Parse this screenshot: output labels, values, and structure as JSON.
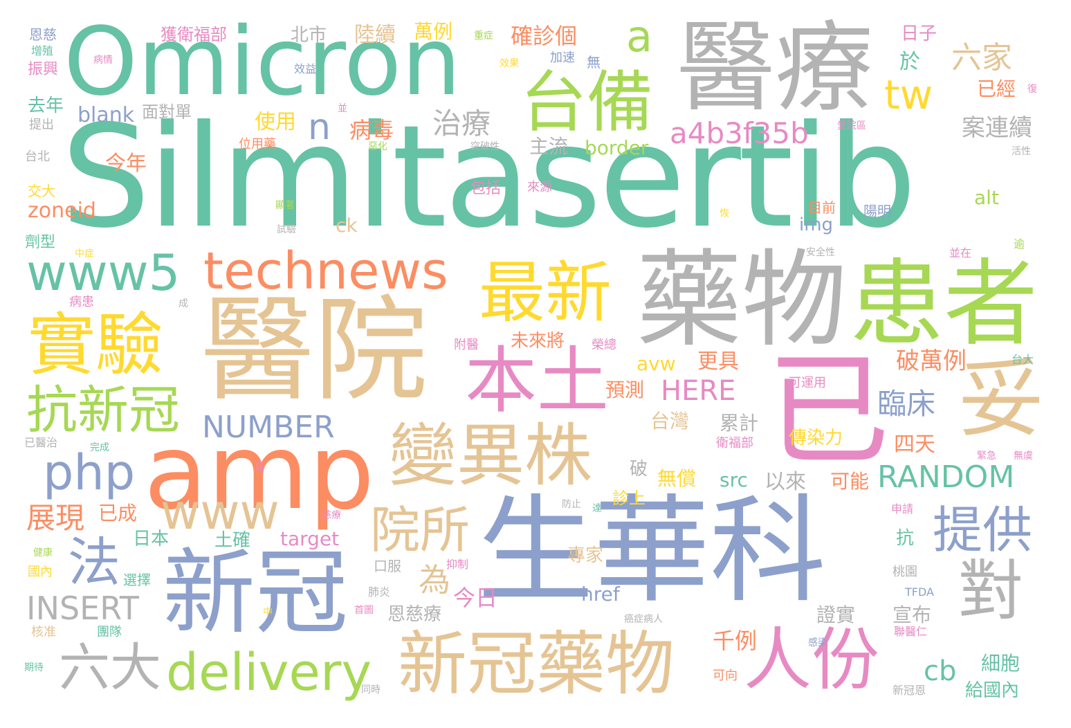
{
  "palette": {
    "green": "#66c2a5",
    "orange": "#fc8d62",
    "blue": "#8da0cb",
    "pink": "#e78ac3",
    "lime": "#a6d854",
    "yellow": "#ffd92f",
    "tan": "#e5c494",
    "gray": "#b3b3b3"
  },
  "words": [
    {
      "t": "Silmitasertib",
      "c": "green"
    },
    {
      "t": "醫療",
      "c": "gray"
    },
    {
      "t": "Omicron",
      "c": "green"
    },
    {
      "t": "醫院",
      "c": "tan"
    },
    {
      "t": "生華科",
      "c": "blue"
    },
    {
      "t": "藥物",
      "c": "gray"
    },
    {
      "t": "患者",
      "c": "lime"
    },
    {
      "t": "amp",
      "c": "orange"
    },
    {
      "t": "新冠",
      "c": "blue"
    },
    {
      "t": "本土",
      "c": "pink"
    },
    {
      "t": "已",
      "c": "pink"
    },
    {
      "t": "變異株",
      "c": "tan"
    },
    {
      "t": "新冠藥物",
      "c": "tan"
    },
    {
      "t": "台備",
      "c": "lime"
    },
    {
      "t": "最新",
      "c": "yellow"
    },
    {
      "t": "實驗",
      "c": "yellow"
    },
    {
      "t": "妥",
      "c": "tan"
    },
    {
      "t": "technews",
      "c": "orange"
    },
    {
      "t": "www5",
      "c": "green"
    },
    {
      "t": "抗新冠",
      "c": "lime"
    },
    {
      "t": "人份",
      "c": "pink"
    },
    {
      "t": "對",
      "c": "gray"
    },
    {
      "t": "delivery",
      "c": "lime"
    },
    {
      "t": "六大",
      "c": "gray"
    },
    {
      "t": "院所",
      "c": "tan"
    },
    {
      "t": "提供",
      "c": "blue"
    },
    {
      "t": "www",
      "c": "tan"
    },
    {
      "t": "php",
      "c": "blue"
    },
    {
      "t": "法",
      "c": "blue"
    },
    {
      "t": "tw",
      "c": "yellow"
    },
    {
      "t": "a",
      "c": "lime"
    },
    {
      "t": "a4b3f35b",
      "c": "pink"
    },
    {
      "t": "n",
      "c": "blue"
    },
    {
      "t": "RANDOM",
      "c": "green"
    },
    {
      "t": "NUMBER",
      "c": "blue"
    },
    {
      "t": "INSERT",
      "c": "gray"
    },
    {
      "t": "HERE",
      "c": "pink"
    },
    {
      "t": "治療",
      "c": "gray"
    },
    {
      "t": "展現",
      "c": "orange"
    },
    {
      "t": "臨床",
      "c": "blue"
    },
    {
      "t": "破萬例",
      "c": "orange"
    },
    {
      "t": "六家",
      "c": "tan"
    },
    {
      "t": "cb",
      "c": "green"
    },
    {
      "t": "案連續",
      "c": "gray"
    },
    {
      "t": "為",
      "c": "tan"
    },
    {
      "t": "病毒",
      "c": "orange"
    },
    {
      "t": "確診個",
      "c": "orange"
    },
    {
      "t": "陸續",
      "c": "tan"
    },
    {
      "t": "萬例",
      "c": "yellow"
    },
    {
      "t": "北市",
      "c": "gray"
    },
    {
      "t": "獲衛福部",
      "c": "pink"
    },
    {
      "t": "blank",
      "c": "blue"
    },
    {
      "t": "zoneid",
      "c": "orange"
    },
    {
      "t": "border",
      "c": "lime"
    },
    {
      "t": "主流",
      "c": "gray"
    },
    {
      "t": "今年",
      "c": "orange"
    },
    {
      "t": "使用",
      "c": "yellow"
    },
    {
      "t": "面對單",
      "c": "gray"
    },
    {
      "t": "去年",
      "c": "green"
    },
    {
      "t": "已經",
      "c": "orange"
    },
    {
      "t": "於",
      "c": "green"
    },
    {
      "t": "日子",
      "c": "pink"
    },
    {
      "t": "avw",
      "c": "yellow"
    },
    {
      "t": "更具",
      "c": "orange"
    },
    {
      "t": "未來將",
      "c": "orange"
    },
    {
      "t": "預測",
      "c": "orange"
    },
    {
      "t": "台灣",
      "c": "tan"
    },
    {
      "t": "累計",
      "c": "gray"
    },
    {
      "t": "無償",
      "c": "yellow"
    },
    {
      "t": "以來",
      "c": "gray"
    },
    {
      "t": "可能",
      "c": "orange"
    },
    {
      "t": "src",
      "c": "green"
    },
    {
      "t": "四天",
      "c": "orange"
    },
    {
      "t": "傳染力",
      "c": "yellow"
    },
    {
      "t": "已成",
      "c": "orange"
    },
    {
      "t": "target",
      "c": "pink"
    },
    {
      "t": "土確",
      "c": "green"
    },
    {
      "t": "日本",
      "c": "green"
    },
    {
      "t": "今日",
      "c": "pink"
    },
    {
      "t": "href",
      "c": "blue"
    },
    {
      "t": "專家",
      "c": "tan"
    },
    {
      "t": "恩慈療",
      "c": "gray"
    },
    {
      "t": "證實",
      "c": "gray"
    },
    {
      "t": "宣布",
      "c": "gray"
    },
    {
      "t": "千例",
      "c": "orange"
    },
    {
      "t": "細胞",
      "c": "green"
    },
    {
      "t": "給國內",
      "c": "green"
    },
    {
      "t": "img",
      "c": "blue"
    },
    {
      "t": "ck",
      "c": "tan"
    },
    {
      "t": "alt",
      "c": "lime"
    },
    {
      "t": "目前",
      "c": "orange"
    },
    {
      "t": "陽明",
      "c": "blue"
    },
    {
      "t": "包括",
      "c": "pink"
    },
    {
      "t": "破",
      "c": "gray"
    },
    {
      "t": "診上",
      "c": "yellow"
    },
    {
      "t": "抗",
      "c": "green"
    },
    {
      "t": "恩慈",
      "c": "blue"
    },
    {
      "t": "增殖",
      "c": "green"
    },
    {
      "t": "振興",
      "c": "pink"
    },
    {
      "t": "提出",
      "c": "gray"
    },
    {
      "t": "台北",
      "c": "gray"
    },
    {
      "t": "交大",
      "c": "yellow"
    },
    {
      "t": "劑型",
      "c": "green"
    },
    {
      "t": "病患",
      "c": "pink"
    },
    {
      "t": "已醫治",
      "c": "gray"
    },
    {
      "t": "健康",
      "c": "lime"
    },
    {
      "t": "國內",
      "c": "yellow"
    },
    {
      "t": "核准",
      "c": "tan"
    },
    {
      "t": "期待",
      "c": "green"
    },
    {
      "t": "選擇",
      "c": "green"
    },
    {
      "t": "團隊",
      "c": "green"
    },
    {
      "t": "肺炎",
      "c": "gray"
    },
    {
      "t": "口服",
      "c": "gray"
    },
    {
      "t": "抑制",
      "c": "pink"
    },
    {
      "t": "慈療",
      "c": "pink"
    },
    {
      "t": "附醫",
      "c": "pink"
    },
    {
      "t": "榮總",
      "c": "pink"
    },
    {
      "t": "位用藥",
      "c": "orange"
    },
    {
      "t": "突破性",
      "c": "gray"
    },
    {
      "t": "來源",
      "c": "pink"
    },
    {
      "t": "效益",
      "c": "blue"
    },
    {
      "t": "加速",
      "c": "blue"
    },
    {
      "t": "無",
      "c": "blue"
    },
    {
      "t": "效果",
      "c": "yellow"
    },
    {
      "t": "病情",
      "c": "pink"
    },
    {
      "t": "重症",
      "c": "lime"
    },
    {
      "t": "愛院區",
      "c": "pink"
    },
    {
      "t": "活性",
      "c": "gray"
    },
    {
      "t": "復",
      "c": "pink"
    },
    {
      "t": "安全性",
      "c": "gray"
    },
    {
      "t": "並在",
      "c": "pink"
    },
    {
      "t": "逾",
      "c": "lime"
    },
    {
      "t": "台大",
      "c": "green"
    },
    {
      "t": "可運用",
      "c": "pink"
    },
    {
      "t": "衛福部",
      "c": "pink"
    },
    {
      "t": "緊急",
      "c": "pink"
    },
    {
      "t": "無虞",
      "c": "pink"
    },
    {
      "t": "申請",
      "c": "pink"
    },
    {
      "t": "桃園",
      "c": "gray"
    },
    {
      "t": "TFDA",
      "c": "blue"
    },
    {
      "t": "聯醫仁",
      "c": "pink"
    },
    {
      "t": "新冠恩",
      "c": "gray"
    },
    {
      "t": "可向",
      "c": "orange"
    },
    {
      "t": "感染",
      "c": "blue"
    },
    {
      "t": "癌症病人",
      "c": "gray"
    },
    {
      "t": "同時",
      "c": "gray"
    },
    {
      "t": "中",
      "c": "yellow"
    },
    {
      "t": "首圖",
      "c": "pink"
    },
    {
      "t": "防止",
      "c": "gray"
    },
    {
      "t": "達",
      "c": "green"
    },
    {
      "t": "這",
      "c": "pink"
    },
    {
      "t": "完成",
      "c": "green"
    },
    {
      "t": "成",
      "c": "gray"
    },
    {
      "t": "中症",
      "c": "yellow"
    },
    {
      "t": "試驗",
      "c": "gray"
    },
    {
      "t": "顯著",
      "c": "lime"
    },
    {
      "t": "惡化",
      "c": "lime"
    },
    {
      "t": "並",
      "c": "pink"
    },
    {
      "t": "恢",
      "c": "yellow"
    }
  ]
}
